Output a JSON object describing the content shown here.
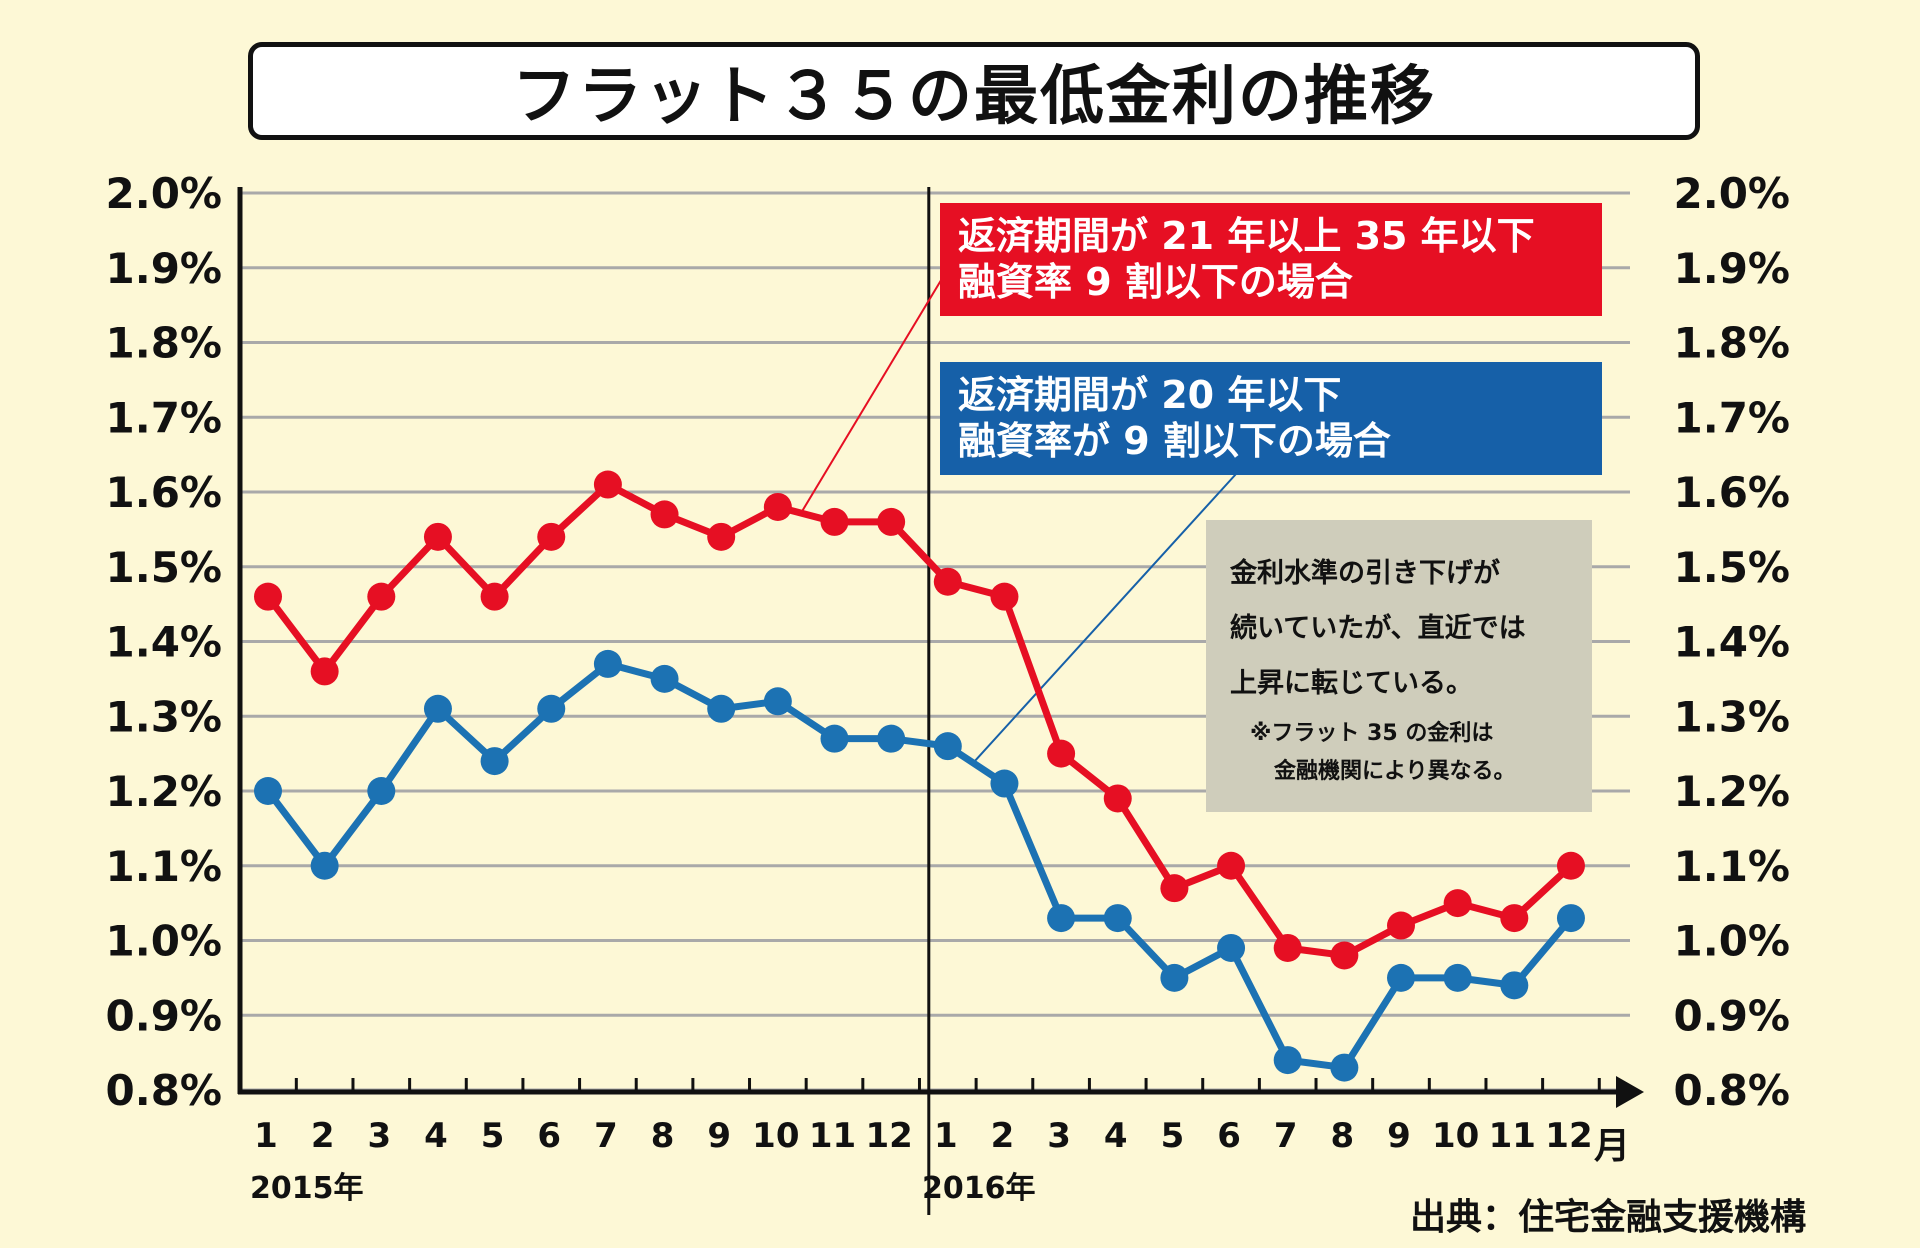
{
  "title": "フラット３５の最低金利の推移",
  "chart_data": {
    "type": "line",
    "y_tick_labels": [
      "2.0%",
      "1.9%",
      "1.8%",
      "1.7%",
      "1.6%",
      "1.5%",
      "1.4%",
      "1.3%",
      "1.2%",
      "1.1%",
      "1.0%",
      "0.9%",
      "0.8%"
    ],
    "ylim": [
      0.8,
      2.0
    ],
    "x_tick_labels": [
      "1",
      "2",
      "3",
      "4",
      "5",
      "6",
      "7",
      "8",
      "9",
      "10",
      "11",
      "12",
      "1",
      "2",
      "3",
      "4",
      "5",
      "6",
      "7",
      "8",
      "9",
      "10",
      "11",
      "12"
    ],
    "x_axis_unit": "月",
    "year_labels": [
      "2015年",
      "2016年"
    ],
    "grid": true,
    "series": [
      {
        "color": "#e60f23",
        "values": [
          1.46,
          1.36,
          1.46,
          1.54,
          1.46,
          1.54,
          1.61,
          1.57,
          1.54,
          1.58,
          1.56,
          1.56,
          1.48,
          1.46,
          1.25,
          1.19,
          1.07,
          1.1,
          0.99,
          0.98,
          1.02,
          1.05,
          1.03,
          1.1
        ]
      },
      {
        "color": "#1c72b3",
        "values": [
          1.2,
          1.1,
          1.2,
          1.31,
          1.24,
          1.31,
          1.37,
          1.35,
          1.31,
          1.32,
          1.27,
          1.27,
          1.26,
          1.21,
          1.03,
          1.03,
          0.95,
          0.99,
          0.84,
          0.83,
          0.95,
          0.95,
          0.94,
          1.03
        ]
      }
    ]
  },
  "callouts": {
    "red": {
      "line1": "返済期間が 21 年以上 35 年以下",
      "line2": "融資率 9 割以下の場合"
    },
    "blue": {
      "line1": "返済期間が 20 年以下",
      "line2": "融資率が 9 割以下の場合"
    }
  },
  "note": {
    "line1": "金利水準の引き下げが",
    "line2": "続いていたが、直近では",
    "line3": "上昇に転じている。",
    "sub1": "※フラット 35 の金利は",
    "sub2": "金融機関により異なる。"
  },
  "source": "出典：住宅金融支援機構"
}
